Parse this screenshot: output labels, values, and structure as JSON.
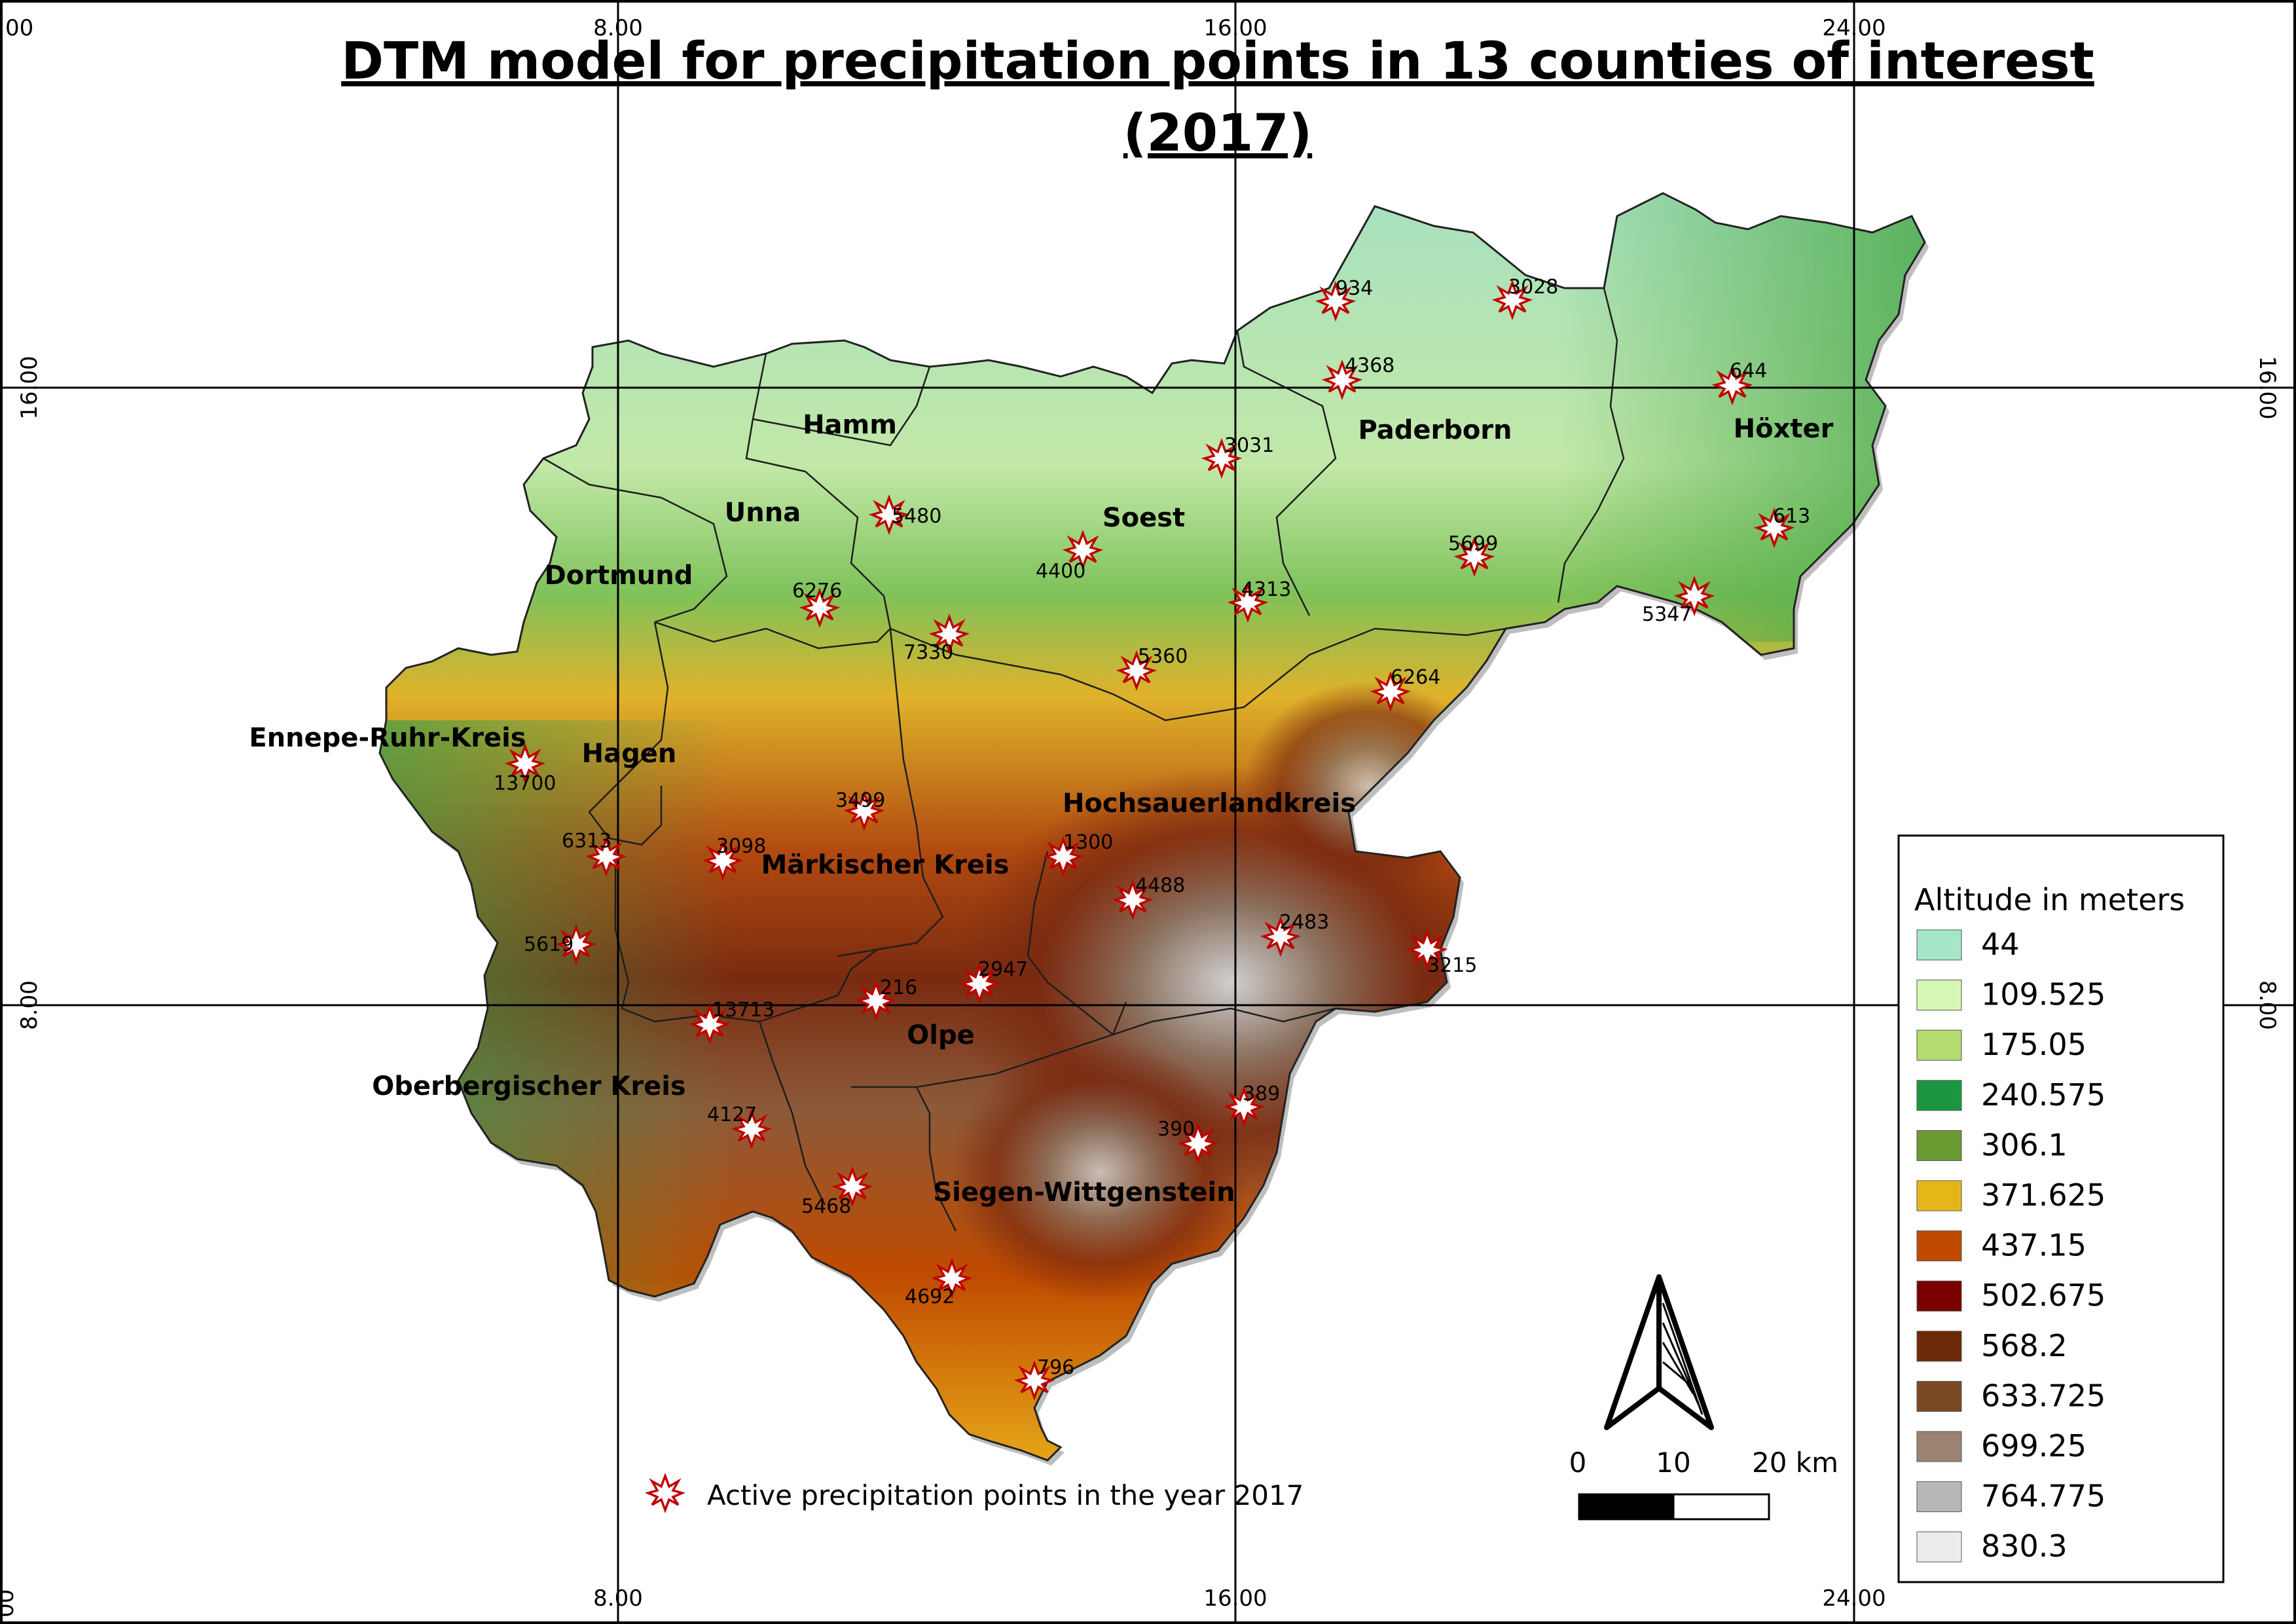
{
  "title": {
    "line1": "DTM model for precipitation points in 13 counties of interest",
    "line2": "(2017)"
  },
  "grid": {
    "top_ticks": [
      "8.00",
      "16.00",
      "24.00"
    ],
    "bottom_ticks": [
      "8.00",
      "16.00",
      "24.00"
    ],
    "left_ticks": [
      "16.00",
      "8.00"
    ],
    "right_ticks": [
      "16.00",
      "8.00"
    ],
    "corner_fragment": "00"
  },
  "counties": [
    "Hamm",
    "Unna",
    "Dortmund",
    "Soest",
    "Paderborn",
    "Höxter",
    "Ennepe-Ruhr-Kreis",
    "Hagen",
    "Märkischer Kreis",
    "Hochsauerlandkreis",
    "Olpe",
    "Oberbergischer Kreis",
    "Siegen-Wittgenstein"
  ],
  "precipitation_points": [
    "934",
    "3028",
    "4368",
    "644",
    "3031",
    "5480",
    "613",
    "4400",
    "5699",
    "6276",
    "4313",
    "5347",
    "7330",
    "5360",
    "6264",
    "13700",
    "3499",
    "6313",
    "3098",
    "1300",
    "4488",
    "2483",
    "5619",
    "3215",
    "2947",
    "216",
    "13713",
    "389",
    "4127",
    "390",
    "5468",
    "4692",
    "796"
  ],
  "legend": {
    "title": "Altitude in meters",
    "items": [
      {
        "label": "44",
        "color": "#a6e6c8"
      },
      {
        "label": "109.525",
        "color": "#d6f7b4"
      },
      {
        "label": "175.05",
        "color": "#b5dc6e"
      },
      {
        "label": "240.575",
        "color": "#1a9641"
      },
      {
        "label": "306.1",
        "color": "#6a9a32"
      },
      {
        "label": "371.625",
        "color": "#e6b619"
      },
      {
        "label": "437.15",
        "color": "#c04a00"
      },
      {
        "label": "502.675",
        "color": "#7a0000"
      },
      {
        "label": "568.2",
        "color": "#6e2a08"
      },
      {
        "label": "633.725",
        "color": "#7a4a26"
      },
      {
        "label": "699.25",
        "color": "#9c8270"
      },
      {
        "label": "764.775",
        "color": "#b8b8b8"
      },
      {
        "label": "830.3",
        "color": "#ececec"
      }
    ]
  },
  "scale_bar": {
    "labels": [
      "0",
      "10",
      "20 km"
    ]
  },
  "point_legend": {
    "label": "Active precipitation points in the year 2017"
  },
  "icons": {
    "north_arrow": "north-arrow-icon",
    "point_marker": "star-burst-icon"
  }
}
